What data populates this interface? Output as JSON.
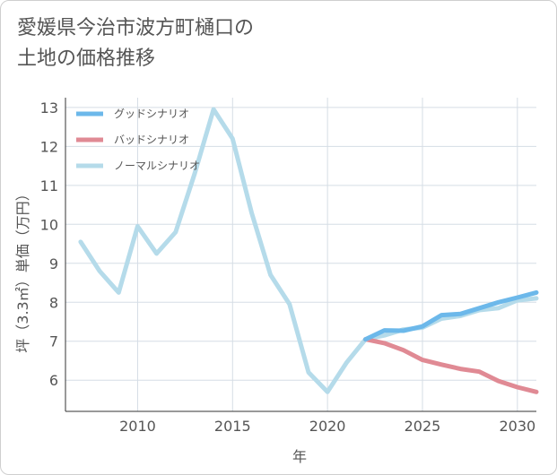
{
  "title": "愛媛県今治市波方町樋口の\n土地の価格推移",
  "chart_data": {
    "type": "line",
    "title": "愛媛県今治市波方町樋口の土地の価格推移",
    "xlabel": "年",
    "ylabel": "坪（3.3㎡）単価（万円）",
    "xlim": [
      2006.2,
      2031.0
    ],
    "ylim": [
      5.2,
      13.25
    ],
    "xticks": [
      2010,
      2015,
      2020,
      2025,
      2030
    ],
    "yticks": [
      6,
      7,
      8,
      9,
      10,
      11,
      12,
      13
    ],
    "grid": true,
    "legend_position": "top-left",
    "series": [
      {
        "name": "グッドシナリオ",
        "color": "#6cb8ea",
        "x": [
          2022,
          2023,
          2024,
          2025,
          2026,
          2027,
          2028,
          2029,
          2030,
          2031
        ],
        "y": [
          7.05,
          7.28,
          7.27,
          7.38,
          7.67,
          7.7,
          7.85,
          8.0,
          8.12,
          8.25
        ]
      },
      {
        "name": "バッドシナリオ",
        "color": "#e08a94",
        "x": [
          2022,
          2023,
          2024,
          2025,
          2026,
          2027,
          2028,
          2029,
          2030,
          2031
        ],
        "y": [
          7.05,
          6.95,
          6.77,
          6.52,
          6.4,
          6.29,
          6.22,
          5.98,
          5.82,
          5.7
        ]
      },
      {
        "name": "ノーマルシナリオ",
        "color": "#b5dbea",
        "x": [
          2007,
          2008,
          2009,
          2010,
          2011,
          2012,
          2013,
          2014,
          2015,
          2016,
          2017,
          2018,
          2019,
          2020,
          2021,
          2022,
          2023,
          2024,
          2025,
          2026,
          2027,
          2028,
          2029,
          2030,
          2031
        ],
        "y": [
          9.55,
          8.8,
          8.25,
          9.95,
          9.25,
          9.8,
          11.3,
          12.95,
          12.2,
          10.3,
          8.7,
          7.95,
          6.2,
          5.7,
          6.45,
          7.05,
          7.15,
          7.3,
          7.35,
          7.58,
          7.65,
          7.8,
          7.85,
          8.05,
          8.1
        ]
      }
    ]
  }
}
